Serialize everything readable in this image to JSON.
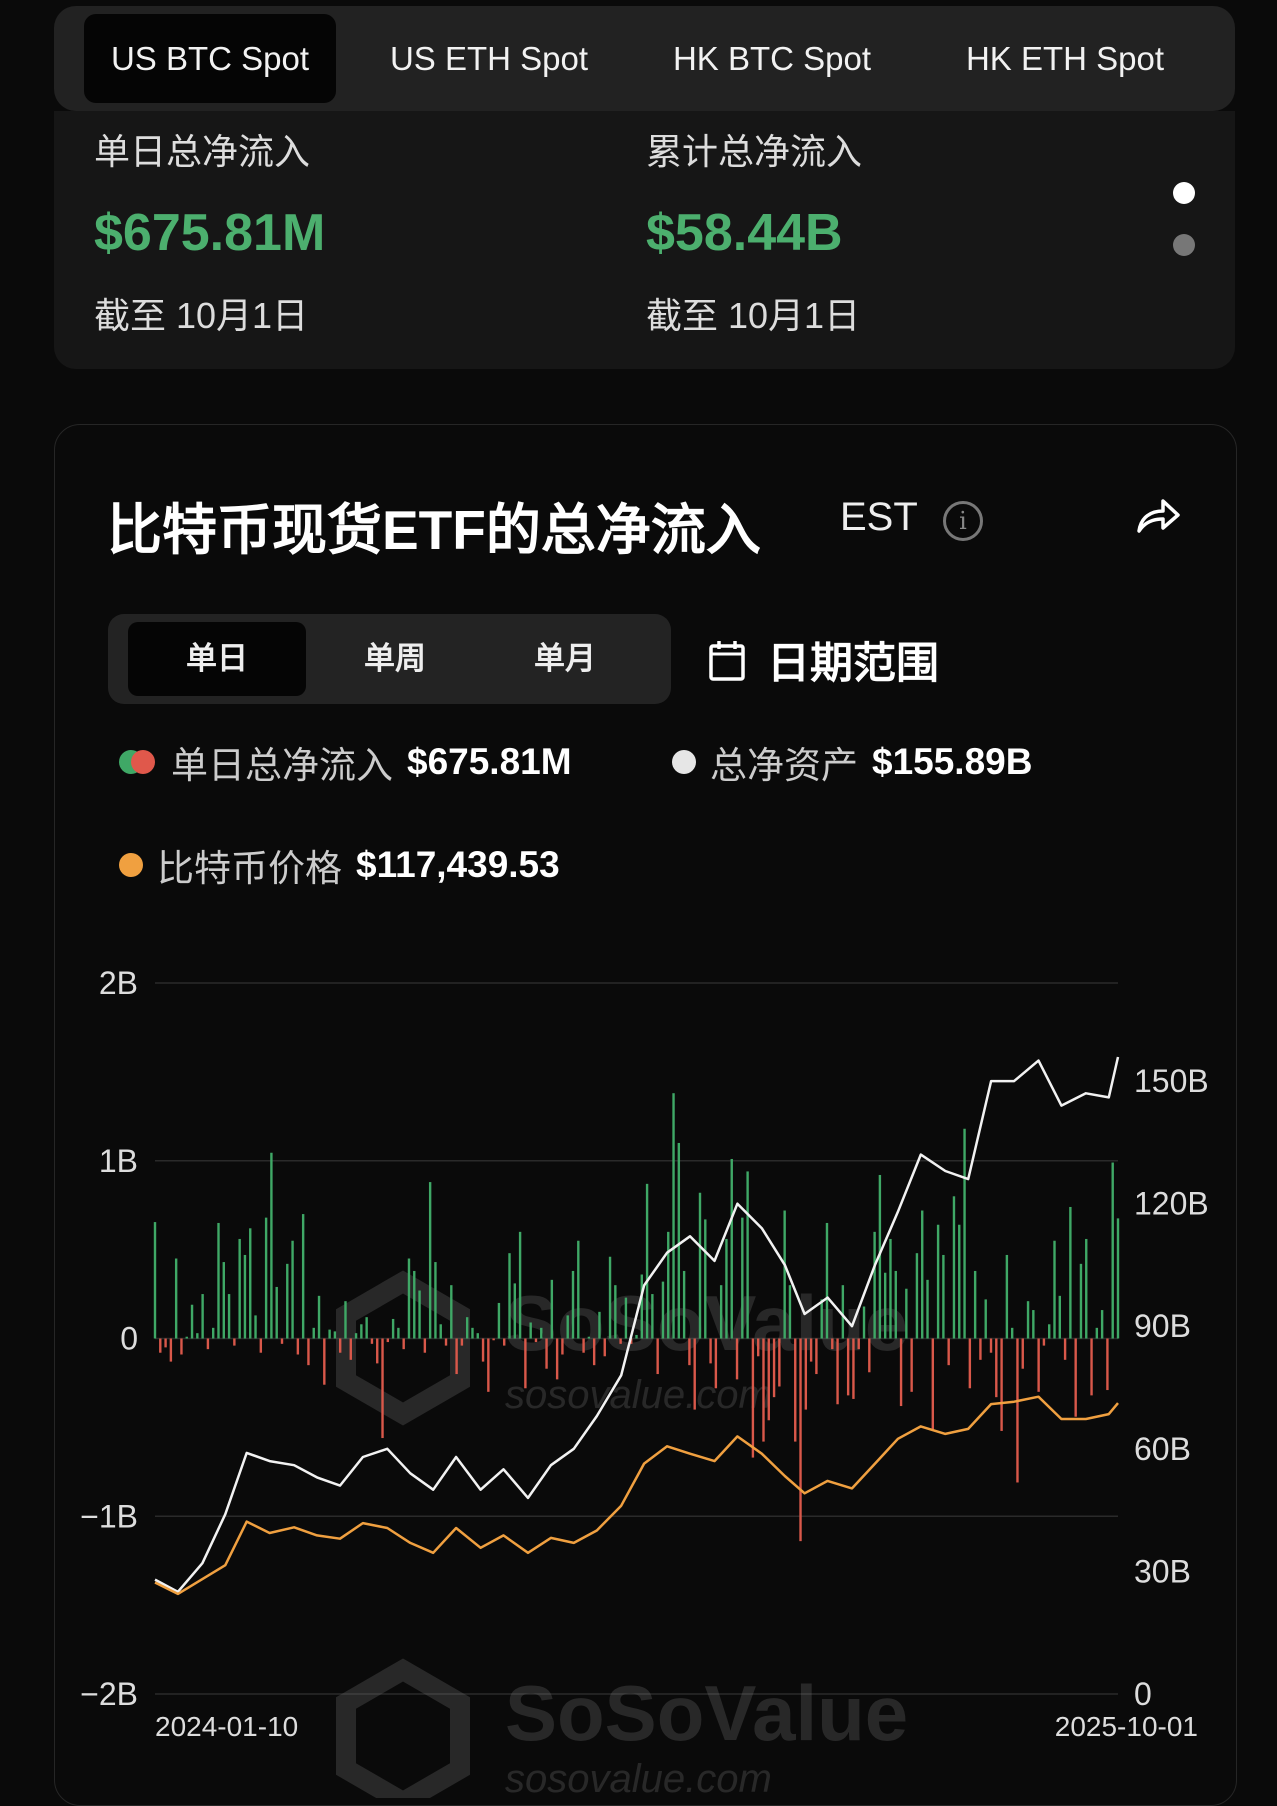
{
  "tabs": [
    {
      "label": "US BTC Spot",
      "active": true
    },
    {
      "label": "US ETH Spot"
    },
    {
      "label": "HK BTC Spot"
    },
    {
      "label": "HK ETH Spot"
    }
  ],
  "summary": {
    "daily": {
      "label": "单日总净流入",
      "value": "$675.81M",
      "date": "截至 10月1日"
    },
    "cumulative": {
      "label": "累计总净流入",
      "value": "$58.44B",
      "date": "截至 10月1日"
    },
    "pager": {
      "pages": 2,
      "active": 1
    }
  },
  "card": {
    "title": "比特币现货ETF的总净流入",
    "timezone": "EST",
    "info_icon": "info-icon",
    "share_icon": "share-icon",
    "periods": [
      {
        "label": "单日",
        "active": true
      },
      {
        "label": "单周"
      },
      {
        "label": "单月"
      }
    ],
    "date_range": {
      "label": "日期范围",
      "icon": "calendar-icon"
    },
    "legend": [
      {
        "label": "单日总净流入",
        "value": "$675.81M",
        "colors": [
          "#3fa866",
          "#e0584b"
        ]
      },
      {
        "label": "总净资产",
        "value": "$155.89B",
        "color": "#e6e6e6"
      },
      {
        "label": "比特币价格",
        "value": "$117,439.53",
        "color": "#f0a040"
      }
    ],
    "watermark": {
      "brand": "SoSoValue",
      "site": "sosovalue.com"
    }
  },
  "chart_data": {
    "type": "bar+line",
    "x_start": "2024-01-10",
    "x_end": "2025-10-01",
    "x_tick_labels": [
      "2024-01-10",
      "2025-10-01"
    ],
    "left_axis": {
      "ticks": [
        "2B",
        "1B",
        "0",
        "−1B",
        "−2B"
      ],
      "tick_values": [
        2000,
        1000,
        0,
        -1000,
        -2000
      ],
      "range": [
        -2000,
        2000
      ],
      "unit": "USD millions"
    },
    "right_axis": {
      "ticks": [
        "150B",
        "120B",
        "90B",
        "60B",
        "30B",
        "0"
      ],
      "tick_values": [
        150,
        120,
        90,
        60,
        30,
        0
      ],
      "range": [
        0,
        174
      ],
      "unit": "USD billions"
    },
    "price_axis_range": [
      0,
      287000
    ],
    "grid": true,
    "colors": {
      "inflow": "#3fa866",
      "outflow": "#d9584a",
      "assets": "#f2f2f2",
      "price": "#f0a040"
    },
    "daily_net_inflow": [
      655,
      -80,
      -50,
      -130,
      450,
      -90,
      10,
      190,
      30,
      250,
      -60,
      60,
      650,
      430,
      250,
      -40,
      560,
      470,
      620,
      130,
      -80,
      680,
      1045,
      290,
      -30,
      420,
      550,
      -90,
      700,
      -150,
      60,
      240,
      -260,
      50,
      40,
      -80,
      210,
      -120,
      30,
      80,
      120,
      -30,
      -140,
      -560,
      -20,
      110,
      60,
      -60,
      450,
      380,
      270,
      -80,
      880,
      430,
      80,
      -40,
      300,
      -200,
      -40,
      120,
      60,
      30,
      -130,
      -300,
      -10,
      200,
      -40,
      480,
      310,
      600,
      -280,
      90,
      -20,
      60,
      -170,
      330,
      -230,
      -90,
      130,
      380,
      550,
      -80,
      10,
      -150,
      150,
      -100,
      460,
      300,
      -30,
      230,
      -30,
      20,
      360,
      870,
      250,
      -200,
      320,
      600,
      1380,
      1100,
      380,
      -150,
      -400,
      820,
      670,
      -140,
      -280,
      300,
      560,
      1010,
      -230,
      680,
      940,
      -670,
      -100,
      -580,
      -460,
      -330,
      -270,
      720,
      300,
      -580,
      -1140,
      -400,
      -130,
      -200,
      220,
      650,
      -60,
      -370,
      300,
      -320,
      -340,
      -60,
      180,
      -190,
      600,
      920,
      370,
      560,
      380,
      -380,
      280,
      -300,
      480,
      720,
      330,
      -510,
      640,
      470,
      -150,
      800,
      640,
      1180,
      -280,
      380,
      -120,
      220,
      -80,
      -330,
      -520,
      470,
      60,
      -810,
      -170,
      210,
      160,
      -300,
      -40,
      80,
      550,
      240,
      -120,
      740,
      -440,
      420,
      560,
      -320,
      60,
      160,
      -290,
      990,
      675.81
    ],
    "total_net_assets": {
      "dates": [
        "2024-01-10",
        "2024-01-25",
        "2024-02-10",
        "2024-02-25",
        "2024-03-10",
        "2024-03-25",
        "2024-04-10",
        "2024-04-25",
        "2024-05-10",
        "2024-05-25",
        "2024-06-10",
        "2024-06-25",
        "2024-07-10",
        "2024-07-25",
        "2024-08-10",
        "2024-08-25",
        "2024-09-10",
        "2024-09-25",
        "2024-10-10",
        "2024-10-25",
        "2024-11-10",
        "2024-11-25",
        "2024-12-10",
        "2024-12-25",
        "2025-01-10",
        "2025-01-25",
        "2025-02-10",
        "2025-02-25",
        "2025-03-10",
        "2025-03-25",
        "2025-04-10",
        "2025-04-25",
        "2025-05-10",
        "2025-05-25",
        "2025-06-10",
        "2025-06-25",
        "2025-07-10",
        "2025-07-25",
        "2025-08-10",
        "2025-08-25",
        "2025-09-10",
        "2025-09-25",
        "2025-10-01"
      ],
      "values": [
        28,
        25,
        32,
        44,
        59,
        57,
        56,
        53,
        51,
        58,
        60,
        54,
        50,
        58,
        50,
        55,
        48,
        56,
        60,
        68,
        78,
        100,
        108,
        112,
        106,
        120,
        114,
        105,
        93,
        97,
        90,
        105,
        118,
        132,
        128,
        126,
        150,
        150,
        155,
        144,
        147,
        146,
        155.89
      ]
    },
    "btc_price": {
      "values": [
        45000,
        40400,
        46400,
        52000,
        69600,
        65000,
        67300,
        64000,
        62700,
        69000,
        67000,
        61000,
        57000,
        67000,
        59000,
        64000,
        57000,
        63000,
        61000,
        66000,
        76000,
        93000,
        100000,
        97000,
        94000,
        104000,
        97000,
        88000,
        81000,
        86000,
        83000,
        93000,
        103000,
        108000,
        105000,
        107000,
        117000,
        118000,
        120000,
        111000,
        111000,
        113000,
        117439.53
      ]
    }
  }
}
